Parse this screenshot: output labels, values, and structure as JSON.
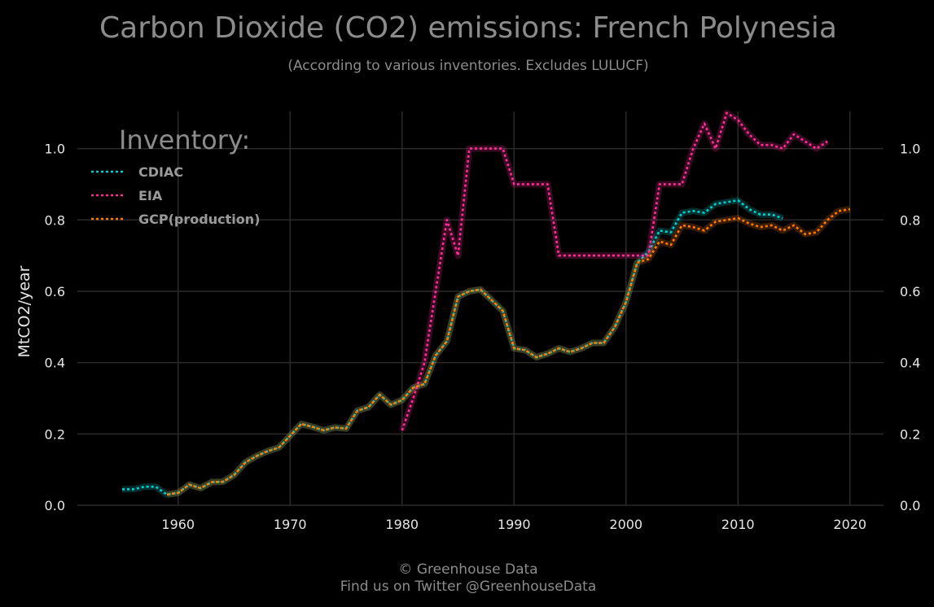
{
  "title": "Carbon Dioxide (CO2) emissions: French Polynesia",
  "subtitle": "(According to various inventories. Excludes LULUCF)",
  "footer": {
    "line1": "© Greenhouse Data",
    "line2": "Find us on Twitter @GreenhouseData"
  },
  "chart_data": {
    "type": "line",
    "title": "Carbon Dioxide (CO2) emissions: French Polynesia",
    "subtitle": "(According to various inventories. Excludes LULUCF)",
    "xlabel": "",
    "ylabel": "MtCO2/year",
    "xlim": [
      1951,
      2023
    ],
    "ylim": [
      0,
      1.12
    ],
    "x_ticks": [
      "1960",
      "1970",
      "1980",
      "1990",
      "2000",
      "2010",
      "2020"
    ],
    "y_ticks": [
      "0.0",
      "0.2",
      "0.4",
      "0.6",
      "0.8",
      "1.0"
    ],
    "grid": true,
    "legend_title": "Inventory:",
    "legend_position": "top-left",
    "series": [
      {
        "name": "CDIAC",
        "color": "#00d0d0",
        "x": [
          1955,
          1956,
          1957,
          1958,
          1959,
          1960,
          1961,
          1962,
          1963,
          1964,
          1965,
          1966,
          1967,
          1968,
          1969,
          1970,
          1971,
          1972,
          1973,
          1974,
          1975,
          1976,
          1977,
          1978,
          1979,
          1980,
          1981,
          1982,
          1983,
          1984,
          1985,
          1986,
          1987,
          1988,
          1989,
          1990,
          1991,
          1992,
          1993,
          1994,
          1995,
          1996,
          1997,
          1998,
          1999,
          2000,
          2001,
          2002,
          2003,
          2004,
          2005,
          2006,
          2007,
          2008,
          2009,
          2010,
          2011,
          2012,
          2013,
          2014
        ],
        "y": [
          0.045,
          0.045,
          0.052,
          0.052,
          0.03,
          0.035,
          0.058,
          0.048,
          0.065,
          0.066,
          0.085,
          0.12,
          0.138,
          0.152,
          0.162,
          0.195,
          0.228,
          0.22,
          0.21,
          0.218,
          0.215,
          0.265,
          0.275,
          0.31,
          0.282,
          0.295,
          0.33,
          0.34,
          0.42,
          0.46,
          0.585,
          0.6,
          0.605,
          0.575,
          0.545,
          0.44,
          0.435,
          0.415,
          0.425,
          0.44,
          0.43,
          0.44,
          0.455,
          0.455,
          0.5,
          0.57,
          0.68,
          0.71,
          0.77,
          0.765,
          0.82,
          0.825,
          0.82,
          0.845,
          0.85,
          0.855,
          0.83,
          0.815,
          0.815,
          0.805
        ]
      },
      {
        "name": "EIA",
        "color": "#ff2d95",
        "x": [
          1980,
          1981,
          1982,
          1983,
          1984,
          1985,
          1986,
          1987,
          1988,
          1989,
          1990,
          1991,
          1992,
          1993,
          1994,
          1995,
          1996,
          1997,
          1998,
          1999,
          2000,
          2001,
          2002,
          2003,
          2004,
          2005,
          2006,
          2007,
          2008,
          2009,
          2010,
          2011,
          2012,
          2013,
          2014,
          2015,
          2016,
          2017,
          2018
        ],
        "y": [
          0.21,
          0.3,
          0.4,
          0.6,
          0.8,
          0.7,
          1.0,
          1.0,
          1.0,
          1.0,
          0.9,
          0.9,
          0.9,
          0.9,
          0.7,
          0.7,
          0.7,
          0.7,
          0.7,
          0.7,
          0.7,
          0.7,
          0.7,
          0.9,
          0.9,
          0.9,
          1.0,
          1.07,
          1.0,
          1.1,
          1.08,
          1.04,
          1.01,
          1.01,
          1.0,
          1.04,
          1.02,
          1.0,
          1.02
        ]
      },
      {
        "name": "GCP(production)",
        "color": "#ff7a00",
        "x": [
          1959,
          1960,
          1961,
          1962,
          1963,
          1964,
          1965,
          1966,
          1967,
          1968,
          1969,
          1970,
          1971,
          1972,
          1973,
          1974,
          1975,
          1976,
          1977,
          1978,
          1979,
          1980,
          1981,
          1982,
          1983,
          1984,
          1985,
          1986,
          1987,
          1988,
          1989,
          1990,
          1991,
          1992,
          1993,
          1994,
          1995,
          1996,
          1997,
          1998,
          1999,
          2000,
          2001,
          2002,
          2003,
          2004,
          2005,
          2006,
          2007,
          2008,
          2009,
          2010,
          2011,
          2012,
          2013,
          2014,
          2015,
          2016,
          2017,
          2018,
          2019,
          2020
        ],
        "y": [
          0.03,
          0.035,
          0.058,
          0.048,
          0.065,
          0.066,
          0.085,
          0.12,
          0.138,
          0.152,
          0.162,
          0.195,
          0.228,
          0.22,
          0.21,
          0.218,
          0.215,
          0.265,
          0.275,
          0.31,
          0.282,
          0.295,
          0.33,
          0.34,
          0.42,
          0.46,
          0.585,
          0.6,
          0.605,
          0.575,
          0.545,
          0.44,
          0.435,
          0.415,
          0.425,
          0.44,
          0.43,
          0.44,
          0.455,
          0.455,
          0.5,
          0.57,
          0.68,
          0.69,
          0.74,
          0.73,
          0.785,
          0.78,
          0.77,
          0.795,
          0.8,
          0.805,
          0.79,
          0.78,
          0.785,
          0.77,
          0.785,
          0.76,
          0.765,
          0.8,
          0.825,
          0.83
        ]
      }
    ]
  }
}
